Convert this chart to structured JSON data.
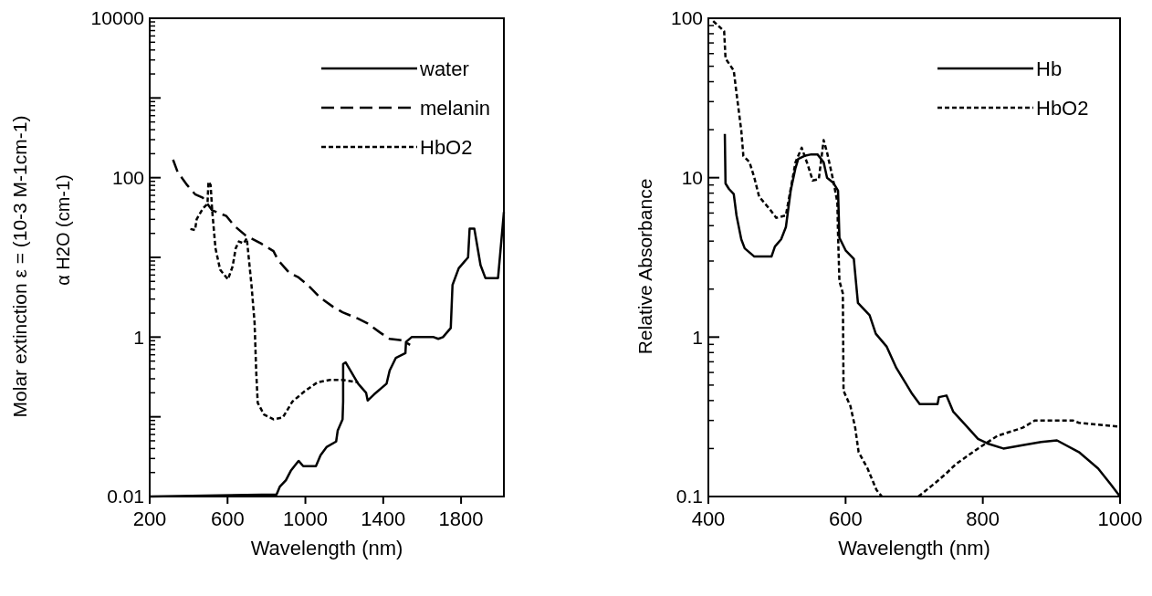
{
  "chart_data": [
    {
      "type": "line",
      "log": "y",
      "xlabel": "Wavelength (nm)",
      "ylabel": "Molar extinction ε = (10-3 M-1cm-1)",
      "annotations": [
        "α H2O (cm-1)"
      ],
      "xlim": [
        200,
        2020
      ],
      "ylim": [
        0.01,
        10000
      ],
      "xticks": [
        200,
        600,
        1000,
        1400,
        1800
      ],
      "yticks": [
        0.01,
        {
          "value": 0.1,
          "label": null
        },
        1,
        {
          "value": 10,
          "label": null
        },
        100,
        {
          "value": 1000,
          "label": null
        },
        10000
      ],
      "legend": "top right",
      "series": [
        {
          "name": "water",
          "color": "#000000",
          "line_style": "solid",
          "x": [
            200,
            852,
            868,
            900,
            925,
            949,
            965,
            989,
            1054,
            1078,
            1110,
            1158,
            1166,
            1191,
            1194,
            1194,
            1207,
            1271,
            1312,
            1320,
            1352,
            1417,
            1433,
            1465,
            1514,
            1517,
            1546,
            1659,
            1683,
            1707,
            1747,
            1756,
            1788,
            1836,
            1844,
            1868,
            1900,
            1925,
            1990,
            2020
          ],
          "values": [
            0.01,
            0.0106,
            0.0132,
            0.016,
            0.021,
            0.025,
            0.028,
            0.024,
            0.024,
            0.033,
            0.042,
            0.049,
            0.067,
            0.093,
            0.155,
            0.46,
            0.48,
            0.26,
            0.2,
            0.16,
            0.19,
            0.26,
            0.38,
            0.55,
            0.63,
            0.87,
            1.0,
            1.0,
            0.95,
            1.0,
            1.3,
            4.5,
            7.3,
            10,
            23,
            23,
            8,
            5.5,
            5.5,
            37
          ]
        },
        {
          "name": "melanin",
          "color": "#000000",
          "line_style": "dashed",
          "x": [
            320,
            344,
            392,
            433,
            473,
            521,
            594,
            634,
            691,
            771,
            836,
            860,
            917,
            965,
            1013,
            1078,
            1142,
            1191,
            1271,
            1320,
            1384,
            1433,
            1497,
            1538
          ],
          "values": [
            168,
            117,
            81,
            62,
            56,
            39,
            33,
            25,
            19,
            15,
            12,
            9.2,
            6.4,
            5.6,
            4.5,
            3.1,
            2.4,
            2.05,
            1.7,
            1.48,
            1.14,
            0.95,
            0.91,
            0.8
          ]
        },
        {
          "name": "HbO2",
          "color": "#000000",
          "line_style": "dotted",
          "x": [
            409,
            433,
            441,
            473,
            497,
            502,
            513,
            521,
            538,
            562,
            602,
            626,
            642,
            658,
            683,
            699,
            707,
            723,
            739,
            747,
            755,
            787,
            836,
            884,
            933,
            997,
            1061,
            1126,
            1190,
            1271
          ],
          "values": [
            22.7,
            22,
            30,
            41,
            47,
            89,
            81,
            39,
            13,
            7,
            5.3,
            7.7,
            13,
            15.8,
            15,
            17.4,
            11,
            4.5,
            1.5,
            0.38,
            0.15,
            0.107,
            0.093,
            0.098,
            0.155,
            0.21,
            0.27,
            0.29,
            0.29,
            0.27
          ]
        }
      ]
    },
    {
      "type": "line",
      "log": "y",
      "xlabel": "Wavelength (nm)",
      "ylabel": "Relative Absorbance",
      "xlim": [
        400,
        1000
      ],
      "ylim": [
        0.1,
        100
      ],
      "xticks": [
        400,
        600,
        800,
        1000
      ],
      "yticks": [
        0.1,
        1,
        10,
        100
      ],
      "legend": "top right",
      "series": [
        {
          "name": "Hb",
          "color": "#000000",
          "line_style": "solid",
          "x": [
            424,
            425,
            430,
            437,
            441,
            448,
            453,
            467,
            492,
            497,
            506,
            513,
            520,
            527,
            531,
            540,
            550,
            559,
            568,
            573,
            582,
            589,
            591,
            600,
            612,
            618,
            635,
            644,
            660,
            674,
            688,
            697,
            708,
            734,
            736,
            747,
            757,
            775,
            793,
            807,
            830,
            858,
            885,
            908,
            940,
            968,
            986,
            1000
          ],
          "values": [
            18.8,
            9.2,
            8.5,
            7.9,
            5.8,
            4.1,
            3.6,
            3.2,
            3.2,
            3.7,
            4.1,
            4.9,
            8.3,
            11.5,
            13.1,
            13.7,
            14,
            14,
            12.5,
            10,
            9.3,
            8.3,
            4.2,
            3.5,
            3.1,
            1.64,
            1.37,
            1.05,
            0.87,
            0.64,
            0.51,
            0.44,
            0.38,
            0.38,
            0.42,
            0.43,
            0.34,
            0.28,
            0.23,
            0.215,
            0.2,
            0.21,
            0.22,
            0.225,
            0.19,
            0.15,
            0.12,
            0.1
          ]
        },
        {
          "name": "HbO2",
          "color": "#000000",
          "line_style": "dotted",
          "x": [
            407,
            423,
            425,
            437,
            441,
            448,
            451,
            460,
            467,
            474,
            490,
            499,
            513,
            527,
            536,
            545,
            552,
            561,
            568,
            573,
            582,
            588,
            589,
            591,
            596,
            597,
            607,
            614,
            619,
            632,
            645,
            653,
            680,
            706,
            729,
            747,
            761,
            793,
            821,
            858,
            876,
            895,
            931,
            940,
            996,
            1000
          ],
          "values": [
            96,
            83,
            56,
            47,
            34,
            19.7,
            13.7,
            12.5,
            10,
            7.6,
            6.3,
            5.6,
            5.8,
            12.5,
            15.4,
            12,
            9.6,
            9.8,
            17.2,
            14.4,
            9.6,
            7,
            4.4,
            2.25,
            1.88,
            0.46,
            0.37,
            0.27,
            0.19,
            0.15,
            0.11,
            0.1,
            null,
            0.1,
            0.12,
            0.14,
            0.16,
            0.2,
            0.24,
            0.27,
            0.3,
            0.3,
            0.3,
            0.29,
            0.275,
            0.27
          ]
        }
      ]
    }
  ]
}
